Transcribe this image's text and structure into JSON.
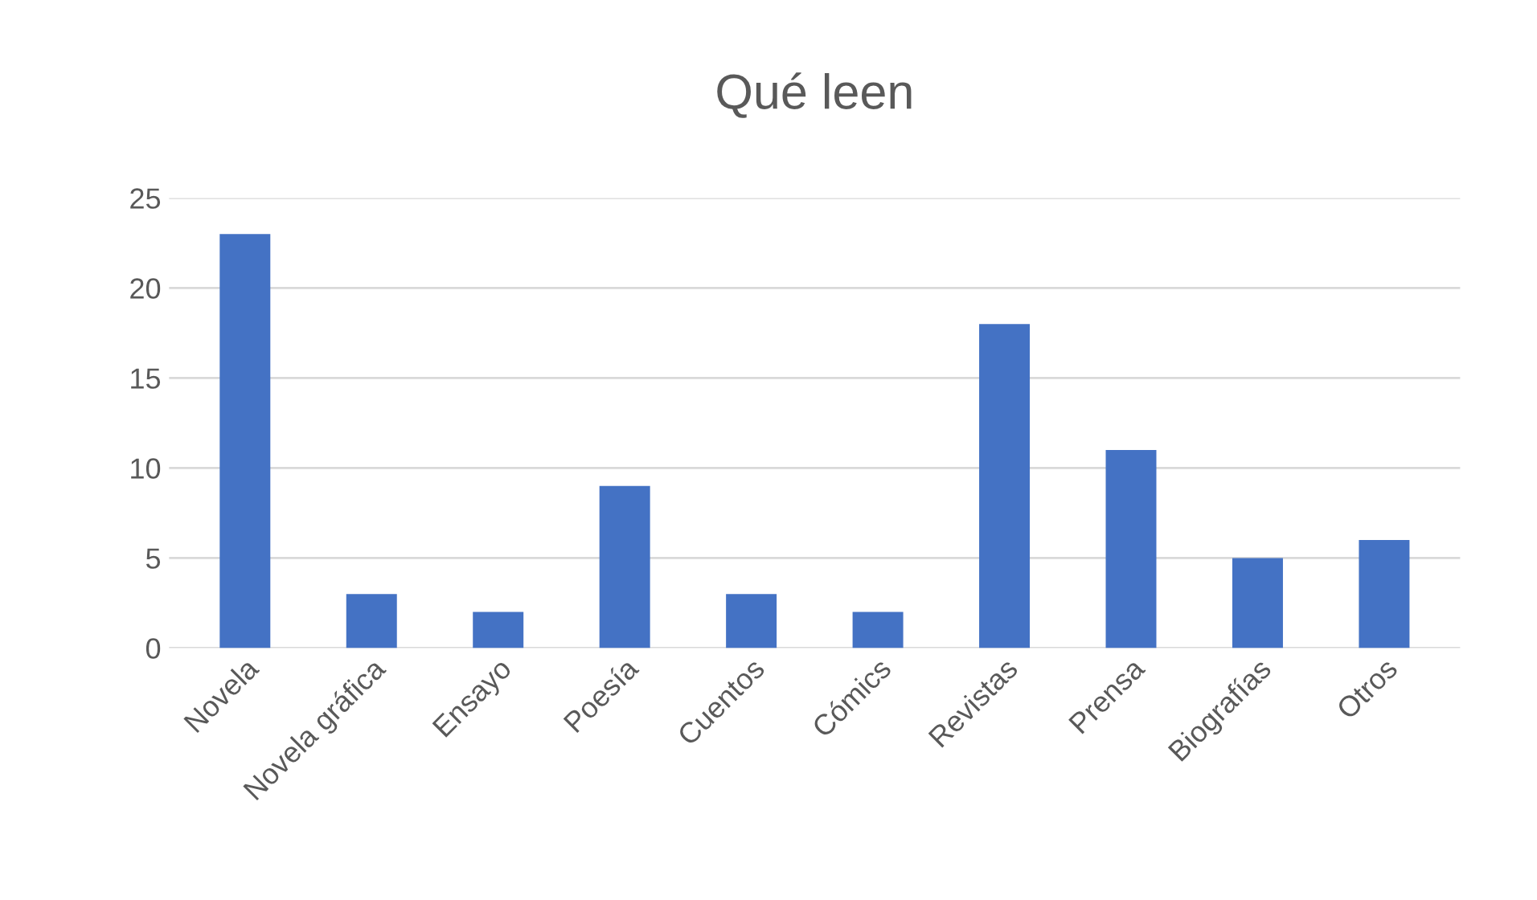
{
  "chart_data": {
    "type": "bar",
    "title": "Qué leen",
    "categories": [
      "Novela",
      "Novela gráfica",
      "Ensayo",
      "Poesía",
      "Cuentos",
      "Cómics",
      "Revistas",
      "Prensa",
      "Biografías",
      "Otros"
    ],
    "values": [
      23,
      3,
      2,
      9,
      3,
      2,
      18,
      11,
      5,
      6
    ],
    "color": "#4472c4",
    "ylim": [
      0,
      25
    ],
    "yticks": [
      0,
      5,
      10,
      15,
      20,
      25
    ],
    "grid": "y",
    "legend": false
  }
}
